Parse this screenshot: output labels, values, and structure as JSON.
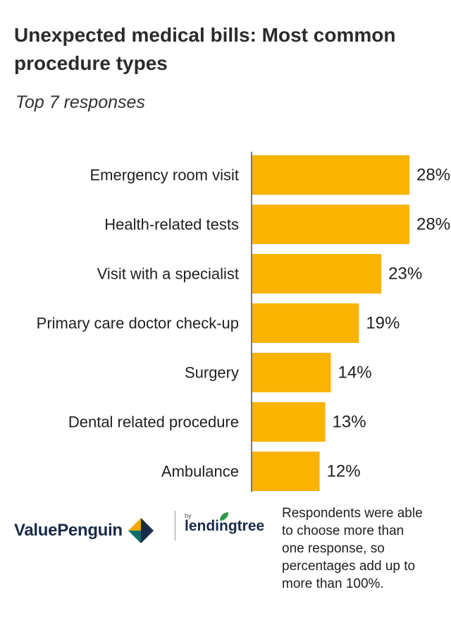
{
  "header": {
    "title": "Unexpected medical bills: Most common procedure types",
    "subtitle": "Top 7 responses"
  },
  "chart_data": {
    "type": "bar",
    "orientation": "horizontal",
    "categories": [
      "Emergency room visit",
      "Health-related tests",
      "Visit with a specialist",
      "Primary care doctor check-up",
      "Surgery",
      "Dental related procedure",
      "Ambulance"
    ],
    "values": [
      28,
      28,
      23,
      19,
      14,
      13,
      12
    ],
    "value_labels": [
      "28%",
      "28%",
      "23%",
      "19%",
      "14%",
      "13%",
      "12%"
    ],
    "unit": "%",
    "xlim": [
      0,
      28
    ],
    "grid": false,
    "legend": "none",
    "bar_color": "#F9B300"
  },
  "footer": {
    "logo_valuepenguin": "ValuePenguin",
    "logo_lendingtree_by": "by",
    "logo_lendingtree": "lendingtree",
    "note": "Respondents were able to choose more than one response, so percentages add up to more than 100%."
  },
  "colors": {
    "bar": "#F9B300",
    "axis": "#1f1f1f",
    "brand_navy": "#1a2b4a",
    "brand_gold": "#F5A800",
    "brand_teal": "#0a6e6a",
    "lendingtree_green": "#2e9a4a"
  }
}
